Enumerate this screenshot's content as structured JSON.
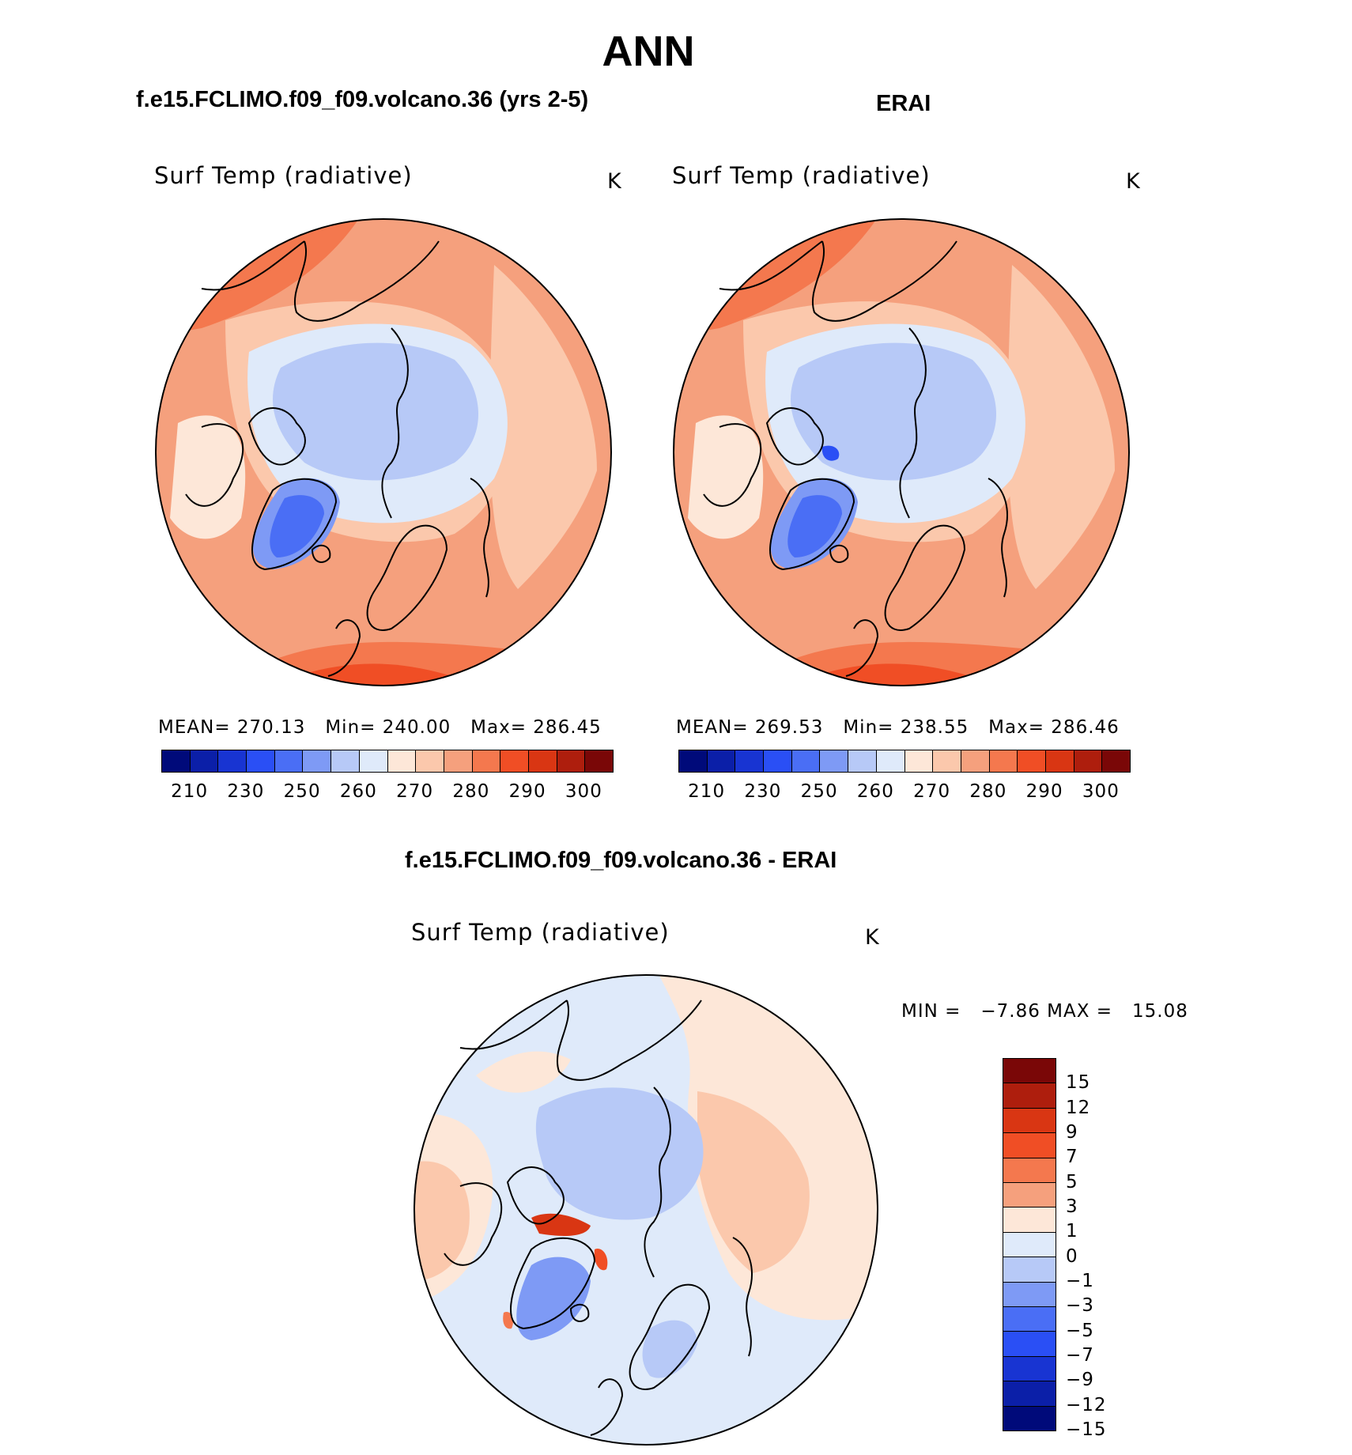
{
  "title": "ANN",
  "panels": [
    {
      "name": "model",
      "case_title": "f.e15.FCLIMO.f09_f09.volcano.36 (yrs 2-5)",
      "variable": "Surf Temp (radiative)",
      "units": "K",
      "stats": {
        "mean_label": "MEAN=",
        "mean": "270.13",
        "min_label": "Min=",
        "min": "240.00",
        "max_label": "Max=",
        "max": "286.45"
      }
    },
    {
      "name": "obs",
      "case_title": "ERAI",
      "variable": "Surf Temp (radiative)",
      "units": "K",
      "stats": {
        "mean_label": "MEAN=",
        "mean": "269.53",
        "min_label": "Min=",
        "min": "238.55",
        "max_label": "Max=",
        "max": "286.46"
      }
    }
  ],
  "abs_colorbar": {
    "colors": [
      "#000a7a",
      "#0b1fa8",
      "#1834d2",
      "#2a4ff5",
      "#4a6ef5",
      "#7e9af5",
      "#b7c9f7",
      "#dfeafa",
      "#fde7d8",
      "#fbc8ac",
      "#f5a07d",
      "#f4784e",
      "#f04e25",
      "#d93613",
      "#ae1e0d",
      "#7a0707"
    ],
    "labels": [
      "210",
      "230",
      "250",
      "260",
      "270",
      "280",
      "290",
      "300"
    ]
  },
  "diff_panel": {
    "case_title": "f.e15.FCLIMO.f09_f09.volcano.36 - ERAI",
    "variable": "Surf Temp (radiative)",
    "units": "K",
    "minmax": {
      "min_label": "MIN =",
      "min": "−7.86",
      "max_label": "MAX =",
      "max": "15.08"
    }
  },
  "diff_colorbar": {
    "colors": [
      "#7a0707",
      "#ae1e0d",
      "#d93613",
      "#f04e25",
      "#f4784e",
      "#f5a07d",
      "#fde7d8",
      "#dfeafa",
      "#b7c9f7",
      "#7e9af5",
      "#4a6ef5",
      "#2a4ff5",
      "#1834d2",
      "#0b1fa8",
      "#000a7a"
    ],
    "labels": [
      "15",
      "12",
      "9",
      "7",
      "5",
      "3",
      "1",
      "0",
      "−1",
      "−3",
      "−5",
      "−7",
      "−9",
      "−12",
      "−15"
    ]
  }
}
